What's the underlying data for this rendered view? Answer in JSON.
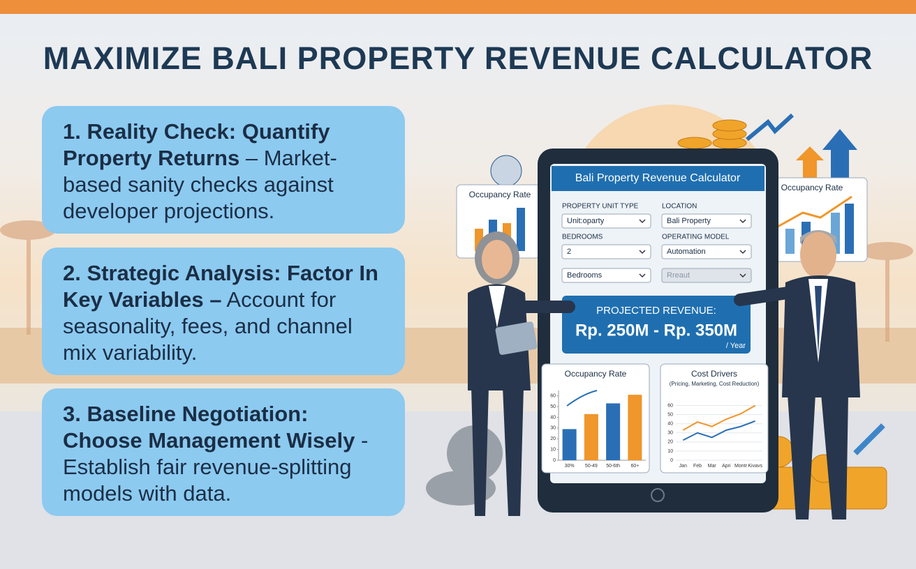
{
  "title": "MAXIMIZE BALI PROPERTY REVENUE CALCULATOR",
  "cards": [
    {
      "heading": "1. Reality Check: Quantify Property Returns",
      "body": "– Market-based sanity checks against developer projections."
    },
    {
      "heading": "2. Strategic Analysis: Factor In Key Variables –",
      "body": "Account for seasonality, fees, and channel mix variability."
    },
    {
      "heading": "3. Baseline Negotiation: Choose Management Wisely",
      "body": "- Establish fair revenue-splitting models with data."
    }
  ],
  "side_panels": [
    "Occupancy Rate",
    "Occupancy Rate"
  ],
  "calculator": {
    "title": "Bali Property Revenue Calculator",
    "fields": [
      {
        "label": "PROPERTY UNIT TYPE",
        "value": "Unit:oparty"
      },
      {
        "label": "LOCATION",
        "value": "Bali Property"
      },
      {
        "label": "BEDROOMS",
        "value": "2"
      },
      {
        "label": "OPERATING MODEL",
        "value": "Automation"
      }
    ],
    "extra_selects": [
      "Bedrooms",
      "Rreaut"
    ],
    "result": {
      "label": "PROJECTED REVENUE:",
      "value": "Rp. 250M - Rp. 350M",
      "unit": "/ Year"
    },
    "charts": [
      {
        "type": "bar",
        "title": "Occupancy Rate",
        "categories": [
          "30%",
          "50-49",
          "50-6th",
          "60+"
        ],
        "values": [
          29,
          43,
          53,
          61
        ],
        "colors": [
          "#2a6fb5",
          "#f0962a",
          "#2a6fb5",
          "#f0962a"
        ],
        "ylim": [
          0,
          65
        ],
        "yticks": [
          0,
          10,
          20,
          30,
          40,
          50,
          60
        ]
      },
      {
        "type": "line",
        "title": "Cost Drivers",
        "subtitle": "(Pricing, Marketing, Cost Reduction)",
        "categories": [
          "Jan",
          "Feb",
          "Mar",
          "Apri",
          "Montr",
          "Kivavs"
        ],
        "series": [
          {
            "color": "#f0962a",
            "values": [
              33,
              42,
              37,
              45,
              51,
              60
            ]
          },
          {
            "color": "#2a6fb5",
            "values": [
              22,
              30,
              25,
              33,
              37,
              43
            ]
          }
        ],
        "ylim": [
          0,
          65
        ],
        "yticks": [
          0,
          10,
          20,
          30,
          40,
          50,
          60
        ]
      }
    ]
  }
}
